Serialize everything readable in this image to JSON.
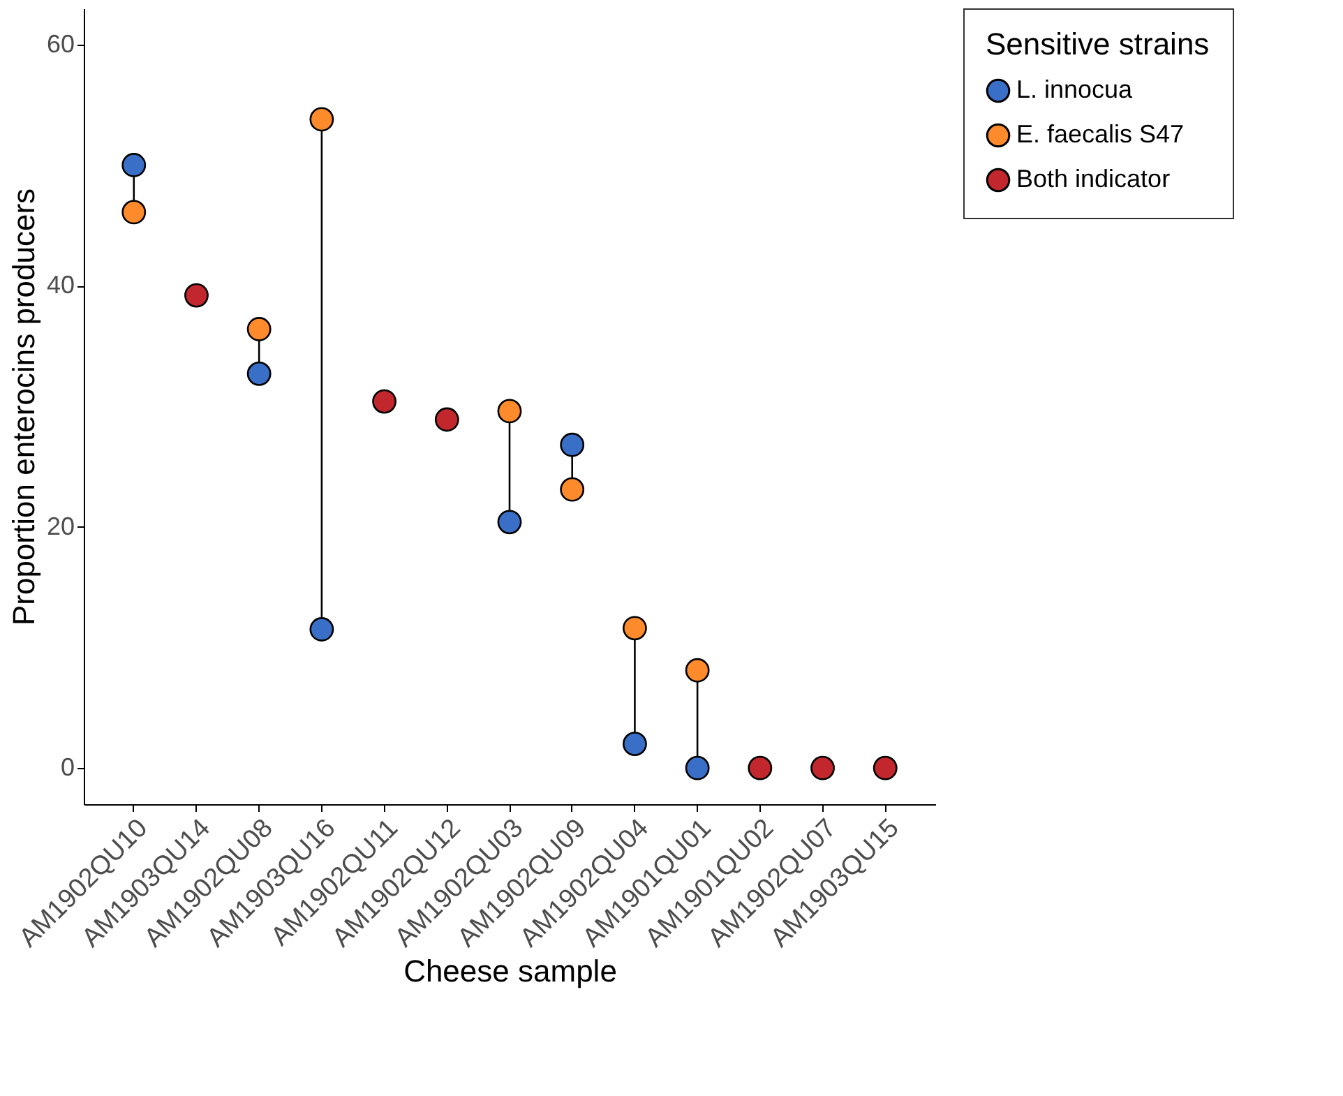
{
  "chart_data": {
    "type": "scatter",
    "xlabel": "Cheese sample",
    "ylabel": "Proportion enterocins producers",
    "legend_title": "Sensitive strains",
    "legend": "right",
    "marker": "circle",
    "grid": false,
    "categories": [
      "AM1902QU10",
      "AM1903QU14",
      "AM1902QU08",
      "AM1903QU16",
      "AM1902QU11",
      "AM1902QU12",
      "AM1902QU03",
      "AM1902QU09",
      "AM1902QU04",
      "AM1901QU01",
      "AM1901QU02",
      "AM1902QU07",
      "AM1903QU15"
    ],
    "ylim": [
      -3,
      63
    ],
    "yticks": [
      0,
      20,
      40,
      60
    ],
    "series": [
      {
        "name": "L. innocua",
        "color": "#3a6fc8",
        "values": [
          50.0,
          null,
          32.7,
          11.5,
          null,
          null,
          20.4,
          26.8,
          2.0,
          0,
          null,
          null,
          null
        ]
      },
      {
        "name": "E. faecalis S47",
        "color": "#fd8b2b",
        "values": [
          46.1,
          null,
          36.4,
          53.8,
          null,
          null,
          29.6,
          23.1,
          11.6,
          8.1,
          null,
          null,
          null
        ]
      },
      {
        "name": "Both indicator",
        "color": "#c1272d",
        "values": [
          null,
          39.2,
          null,
          null,
          30.4,
          28.9,
          null,
          null,
          null,
          null,
          0,
          0,
          0
        ]
      }
    ]
  }
}
